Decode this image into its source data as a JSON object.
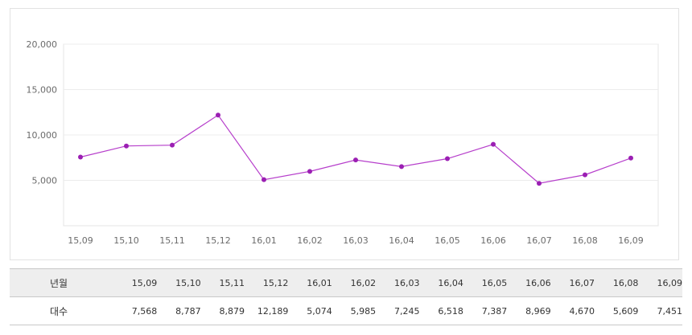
{
  "chart_data": {
    "type": "line",
    "categories": [
      "15,09",
      "15,10",
      "15,11",
      "15,12",
      "16,01",
      "16,02",
      "16,03",
      "16,04",
      "16,05",
      "16,06",
      "16,07",
      "16,08",
      "16,09"
    ],
    "series": [
      {
        "values": [
          7568,
          8787,
          8879,
          12189,
          5074,
          5985,
          7245,
          6518,
          7387,
          8969,
          4670,
          5609,
          7451
        ]
      }
    ],
    "yticks": [
      "5,000",
      "10,000",
      "15,000",
      "20,000"
    ],
    "ytick_values": [
      5000,
      10000,
      15000,
      20000
    ],
    "ylim": [
      0,
      20000
    ],
    "grid": true,
    "line_color": "#b63ecb",
    "marker_color": "#9b1fb3",
    "title": "",
    "xlabel": "",
    "ylabel": ""
  },
  "table": {
    "row_month_header": "년월",
    "row_count_header": "대수",
    "months": [
      "15,09",
      "15,10",
      "15,11",
      "15,12",
      "16,01",
      "16,02",
      "16,03",
      "16,04",
      "16,05",
      "16,06",
      "16,07",
      "16,08",
      "16,09"
    ],
    "counts": [
      "7,568",
      "8,787",
      "8,879",
      "12,189",
      "5,074",
      "5,985",
      "7,245",
      "6,518",
      "7,387",
      "8,969",
      "4,670",
      "5,609",
      "7,451"
    ]
  }
}
